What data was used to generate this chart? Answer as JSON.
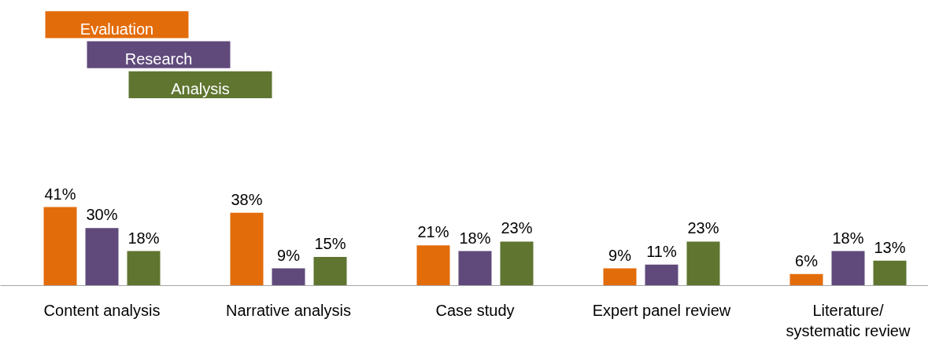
{
  "chart_data": {
    "type": "bar",
    "categories": [
      "Content analysis",
      "Narrative analysis",
      "Case study",
      "Expert panel review",
      "Literature/\nsystematic review"
    ],
    "series": [
      {
        "name": "Evaluation",
        "color": "#e36c0a",
        "values": [
          41,
          38,
          21,
          9,
          6
        ],
        "value_labels": [
          "41%",
          "38%",
          "21%",
          "9%",
          "6%"
        ]
      },
      {
        "name": "Research",
        "color": "#604a7b",
        "values": [
          30,
          9,
          18,
          11,
          18
        ],
        "value_labels": [
          "30%",
          "9%",
          "18%",
          "11%",
          "18%"
        ]
      },
      {
        "name": "Analysis",
        "color": "#5f7530",
        "values": [
          18,
          15,
          23,
          23,
          13
        ],
        "value_labels": [
          "18%",
          "15%",
          "23%",
          "23%",
          "13%"
        ]
      }
    ],
    "legend": "top left",
    "grid": false
  }
}
